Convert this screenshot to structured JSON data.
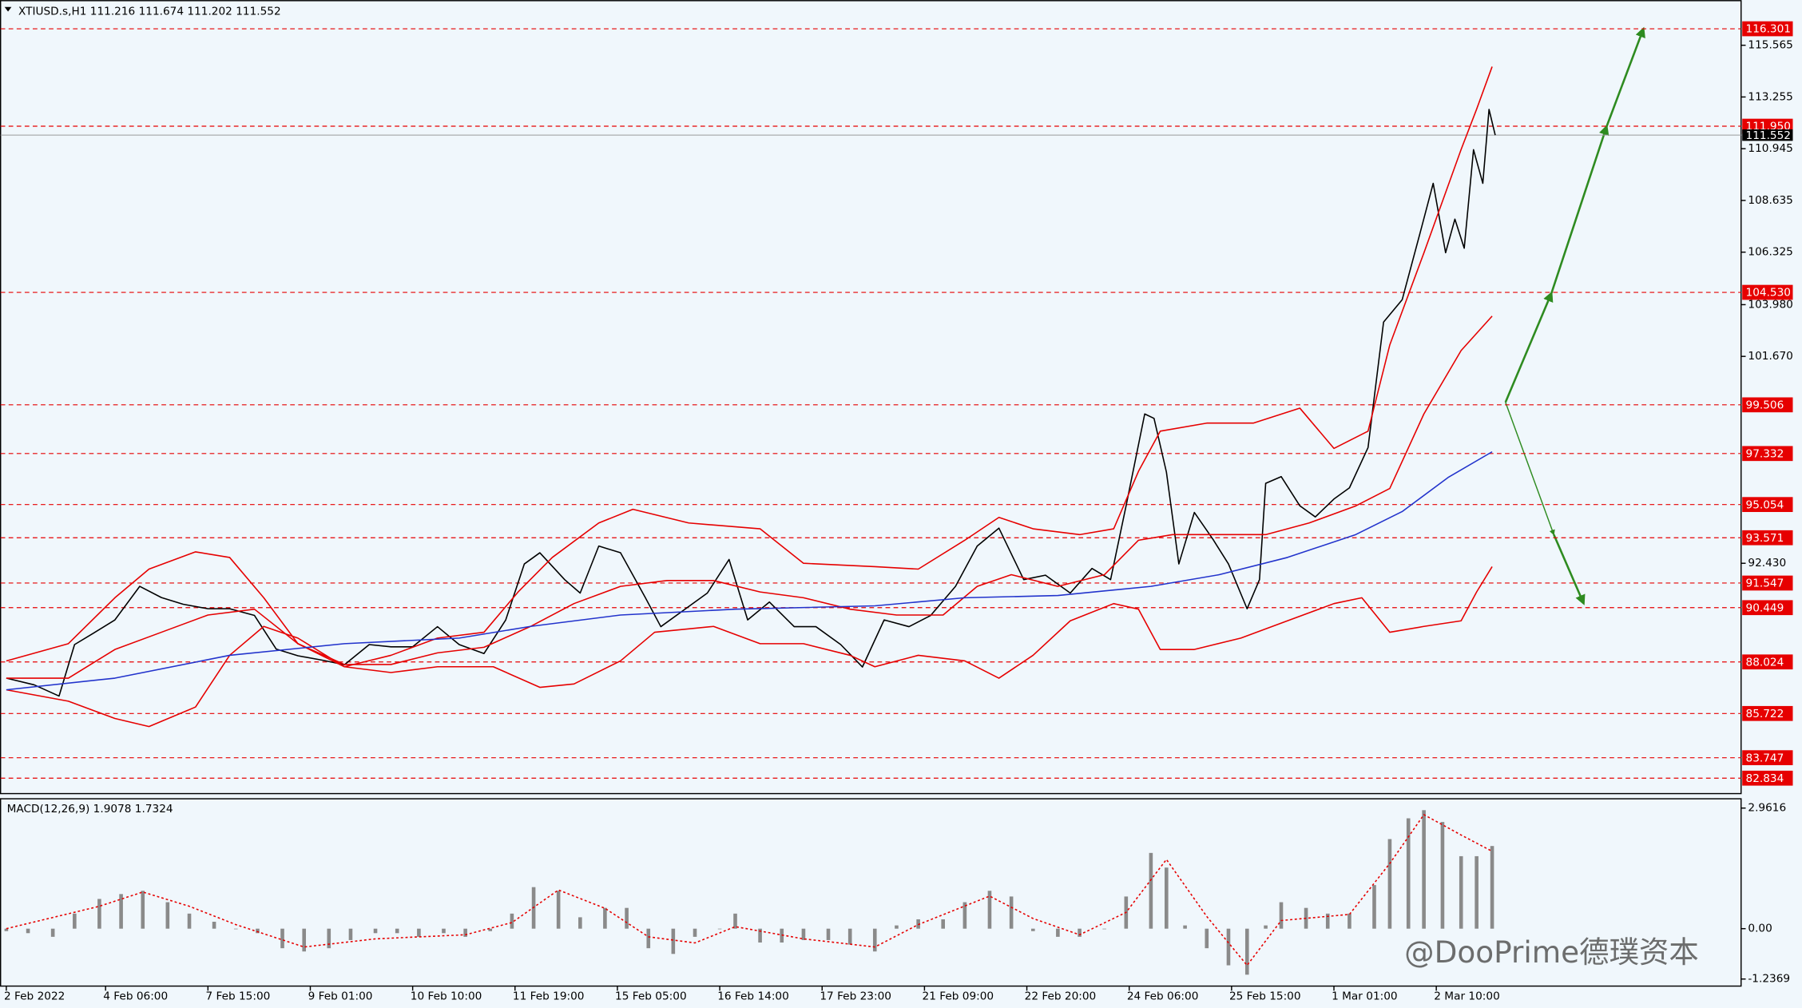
{
  "watermark": "@DooPrime德璞资本",
  "chart_data": [
    {
      "type": "line",
      "title": "XTIUSD.s,H1 111.216 111.674 111.202 111.552",
      "xlim": [
        -1.85,
        559.26
      ],
      "ylim": [
        82.17,
        117.48
      ],
      "xticks": [
        {
          "value": 0,
          "label": "2 Feb 2022"
        },
        {
          "value": 32,
          "label": "4 Feb 06:00"
        },
        {
          "value": 65,
          "label": "7 Feb 15:00"
        },
        {
          "value": 98,
          "label": "9 Feb 01:00"
        },
        {
          "value": 131,
          "label": "10 Feb 10:00"
        },
        {
          "value": 164,
          "label": "11 Feb 19:00"
        },
        {
          "value": 197,
          "label": "15 Feb 05:00"
        },
        {
          "value": 230,
          "label": "16 Feb 14:00"
        },
        {
          "value": 263,
          "label": "17 Feb 23:00"
        },
        {
          "value": 296,
          "label": "21 Feb 09:00"
        },
        {
          "value": 329,
          "label": "22 Feb 20:00"
        },
        {
          "value": 362,
          "label": "24 Feb 06:00"
        },
        {
          "value": 395,
          "label": "25 Feb 15:00"
        },
        {
          "value": 428,
          "label": "1 Mar 01:00"
        },
        {
          "value": 461,
          "label": "2 Mar 10:00"
        }
      ],
      "yticks": [
        115.565,
        113.255,
        110.945,
        108.635,
        106.325,
        {
          "value": 103.98,
          "label": "103.980"
        },
        {
          "value": 101.67,
          "label": "101.670"
        },
        {
          "value": 92.43,
          "label": "92.430"
        }
      ],
      "levels": [
        116.301,
        {
          "value": 111.95,
          "label": "111.950"
        },
        {
          "value": 104.53,
          "label": "104.530"
        },
        99.506,
        97.332,
        95.054,
        93.571,
        91.547,
        90.449,
        88.024,
        85.722,
        83.747,
        82.834
      ],
      "level_color": "#e60000",
      "last_price": 111.552,
      "series": [
        {
          "color": "#000000",
          "x": [
            0,
            9,
            17,
            22,
            28,
            35,
            43,
            50,
            57,
            65,
            72,
            80,
            87,
            94,
            102,
            109,
            117,
            124,
            131,
            139,
            146,
            154,
            161,
            167,
            172,
            180,
            185,
            191,
            198,
            206,
            211,
            219,
            226,
            233,
            239,
            246,
            254,
            261,
            269,
            276,
            283,
            291,
            298,
            306,
            313,
            320,
            328,
            335,
            343,
            350,
            356,
            361,
            367,
            370,
            374,
            378,
            383,
            389,
            394,
            400,
            404,
            406,
            411,
            417,
            422,
            428,
            433,
            439,
            444,
            450,
            456,
            460,
            464,
            467,
            470,
            473,
            476,
            478,
            480
          ],
          "values": [
            87.3,
            87.0,
            86.5,
            88.8,
            89.3,
            89.9,
            91.4,
            90.9,
            90.6,
            90.4,
            90.4,
            90.1,
            88.6,
            88.3,
            88.1,
            87.9,
            88.8,
            88.7,
            88.7,
            89.6,
            88.8,
            88.4,
            89.9,
            92.4,
            92.9,
            91.7,
            91.1,
            93.2,
            92.9,
            90.9,
            89.6,
            90.4,
            91.1,
            92.6,
            89.9,
            90.7,
            89.6,
            89.6,
            88.8,
            87.8,
            89.9,
            89.6,
            90.1,
            91.4,
            93.2,
            94.0,
            91.7,
            91.9,
            91.1,
            92.2,
            91.7,
            95.0,
            99.1,
            98.9,
            96.5,
            92.4,
            94.7,
            93.5,
            92.4,
            90.4,
            91.7,
            96.0,
            96.3,
            95.0,
            94.5,
            95.3,
            95.8,
            97.6,
            103.2,
            104.2,
            107.3,
            109.4,
            106.3,
            107.8,
            106.5,
            110.9,
            109.4,
            112.7,
            111.55
          ]
        },
        {
          "color": "#e60000",
          "x": [
            0,
            20,
            35,
            46,
            61,
            72,
            83,
            94,
            109,
            124,
            139,
            154,
            165,
            176,
            191,
            202,
            220,
            243,
            257,
            280,
            294,
            309,
            320,
            331,
            346,
            357,
            365,
            372,
            387,
            402,
            417,
            428,
            439,
            446,
            457,
            469,
            474,
            479
          ],
          "values": [
            88.07,
            88.84,
            90.89,
            92.17,
            92.94,
            92.69,
            90.89,
            88.84,
            87.81,
            88.32,
            89.09,
            89.35,
            91.15,
            92.69,
            94.23,
            94.84,
            94.23,
            93.97,
            92.43,
            92.28,
            92.17,
            93.46,
            94.48,
            93.97,
            93.71,
            93.97,
            96.54,
            98.33,
            98.69,
            98.69,
            99.36,
            97.56,
            98.33,
            102.18,
            106.29,
            110.91,
            112.71,
            114.61
          ]
        },
        {
          "color": "#e60000",
          "x": [
            0,
            20,
            35,
            50,
            65,
            80,
            94,
            109,
            124,
            139,
            154,
            169,
            183,
            198,
            213,
            228,
            243,
            257,
            272,
            287,
            302,
            313,
            324,
            339,
            354,
            365,
            376,
            391,
            406,
            420,
            435,
            446,
            457,
            469,
            479
          ],
          "values": [
            87.3,
            87.3,
            88.58,
            89.35,
            90.12,
            90.38,
            88.84,
            87.91,
            87.91,
            88.43,
            88.68,
            89.61,
            90.63,
            91.4,
            91.66,
            91.66,
            91.15,
            90.89,
            90.38,
            90.12,
            90.12,
            91.4,
            91.92,
            91.4,
            91.92,
            93.46,
            93.71,
            93.71,
            93.71,
            94.23,
            94.99,
            95.77,
            99.1,
            101.93,
            103.47
          ]
        },
        {
          "color": "#e60000",
          "x": [
            0,
            20,
            35,
            46,
            61,
            72,
            83,
            94,
            109,
            124,
            139,
            157,
            172,
            183,
            198,
            209,
            228,
            243,
            257,
            272,
            280,
            294,
            309,
            320,
            331,
            343,
            357,
            365,
            372,
            383,
            398,
            413,
            428,
            437,
            446,
            457,
            469,
            474,
            479
          ],
          "values": [
            86.78,
            86.27,
            85.5,
            85.14,
            86.01,
            88.32,
            89.61,
            89.09,
            87.81,
            87.55,
            87.81,
            87.81,
            86.89,
            87.04,
            88.07,
            89.35,
            89.61,
            88.84,
            88.84,
            88.32,
            87.81,
            88.32,
            88.07,
            87.3,
            88.32,
            89.86,
            90.63,
            90.38,
            88.58,
            88.58,
            89.09,
            89.86,
            90.63,
            90.89,
            89.35,
            89.61,
            89.86,
            91.15,
            92.28
          ]
        },
        {
          "color": "#2233cc",
          "x": [
            0,
            35,
            72,
            109,
            146,
            169,
            198,
            235,
            280,
            309,
            339,
            369,
            391,
            413,
            435,
            450,
            465,
            479
          ],
          "values": [
            86.78,
            87.3,
            88.32,
            88.84,
            89.09,
            89.61,
            90.12,
            90.38,
            90.53,
            90.89,
            90.99,
            91.4,
            91.92,
            92.69,
            93.71,
            94.74,
            96.28,
            97.41
          ]
        }
      ]
    },
    {
      "type": "bar",
      "title": "MACD(12,26,9) 1.9078 1.7324",
      "xlim": [
        -1.85,
        559.26
      ],
      "ylim": [
        -1.41,
        3.19
      ],
      "yticks": [
        2.9616,
        {
          "value": 0,
          "label": "0.00"
        },
        -1.2369
      ],
      "series": [
        {
          "type": "bar",
          "color": "#8a8a8a",
          "x": [
            0,
            7,
            15,
            22,
            30,
            37,
            44,
            52,
            59,
            67,
            74,
            81,
            89,
            96,
            104,
            111,
            119,
            126,
            133,
            141,
            148,
            156,
            163,
            170,
            178,
            185,
            193,
            200,
            207,
            215,
            222,
            230,
            235,
            243,
            250,
            257,
            265,
            272,
            280,
            287,
            294,
            302,
            309,
            317,
            324,
            331,
            339,
            346,
            354,
            361,
            369,
            374,
            380,
            387,
            394,
            400,
            406,
            411,
            419,
            426,
            433,
            441,
            446,
            452,
            457,
            463,
            469,
            474,
            479
          ],
          "values": [
            -0.06,
            -0.11,
            -0.2,
            0.37,
            0.73,
            0.85,
            0.93,
            0.65,
            0.37,
            0.17,
            0,
            -0.11,
            -0.48,
            -0.56,
            -0.48,
            -0.28,
            -0.11,
            -0.11,
            -0.2,
            -0.11,
            -0.2,
            -0.06,
            0.37,
            1.02,
            0.93,
            0.28,
            0.51,
            0.51,
            -0.48,
            -0.62,
            -0.2,
            0,
            0.37,
            -0.34,
            -0.34,
            -0.28,
            -0.28,
            -0.39,
            -0.56,
            0.08,
            0.23,
            0.23,
            0.65,
            0.93,
            0.79,
            -0.06,
            -0.2,
            -0.2,
            0,
            0.79,
            1.86,
            1.5,
            0.08,
            -0.48,
            -0.9,
            -1.13,
            0.08,
            0.65,
            0.51,
            0.37,
            0.37,
            1.07,
            2.2,
            2.71,
            2.91,
            2.62,
            1.78,
            1.78,
            2.03
          ]
        },
        {
          "type": "line",
          "color": "#e60000",
          "x": [
            0,
            30,
            44,
            59,
            74,
            96,
            119,
            148,
            163,
            178,
            193,
            207,
            222,
            235,
            257,
            280,
            294,
            317,
            331,
            346,
            361,
            374,
            387,
            400,
            411,
            433,
            446,
            457,
            469,
            479
          ],
          "values": [
            0,
            0.55,
            0.9,
            0.55,
            0.1,
            -0.45,
            -0.25,
            -0.15,
            0.15,
            0.95,
            0.5,
            -0.2,
            -0.35,
            0.05,
            -0.25,
            -0.45,
            0.1,
            0.8,
            0.25,
            -0.15,
            0.4,
            1.7,
            0.3,
            -0.9,
            0.2,
            0.35,
            1.6,
            2.8,
            2.3,
            1.9
          ]
        }
      ]
    }
  ]
}
